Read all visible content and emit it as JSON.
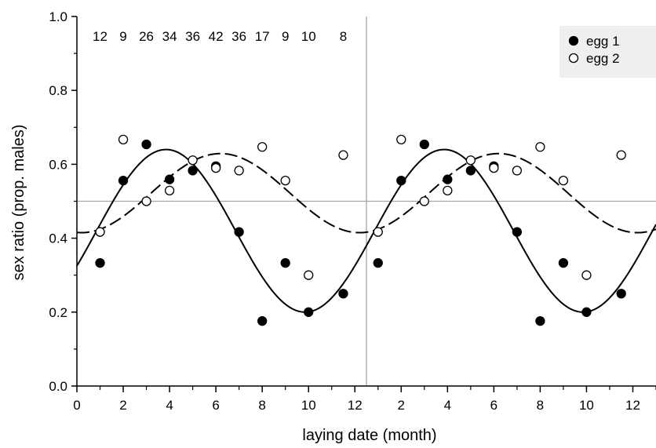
{
  "chart_data": {
    "type": "scatter",
    "title": "",
    "xlabel": "laying date (month)",
    "ylabel": "sex ratio (prop. males)",
    "xlim": [
      0,
      25
    ],
    "ylim": [
      0,
      1
    ],
    "x_tick_labels": [
      "0",
      "2",
      "4",
      "6",
      "8",
      "10",
      "12",
      "2",
      "4",
      "6",
      "8",
      "10",
      "12"
    ],
    "y_tick_labels": [
      "0.0",
      "0.2",
      "0.4",
      "0.6",
      "0.8",
      "1.0"
    ],
    "reference_lines": {
      "horizontal_y": 0.5,
      "vertical_x": 12.5
    },
    "sample_sizes": {
      "x": [
        1,
        2,
        3,
        4,
        5,
        6,
        7,
        8,
        9,
        10,
        11.5
      ],
      "labels": [
        "12",
        "9",
        "26",
        "34",
        "36",
        "42",
        "36",
        "17",
        "9",
        "10",
        "8"
      ]
    },
    "legend": {
      "position": "top-right"
    },
    "series": [
      {
        "name": "egg 1",
        "marker": "filled-circle",
        "color": "#000000",
        "x": [
          1,
          2,
          3,
          4,
          5,
          6,
          7,
          8,
          9,
          10,
          11.5
        ],
        "y": [
          0.333,
          0.556,
          0.654,
          0.559,
          0.583,
          0.595,
          0.417,
          0.176,
          0.333,
          0.2,
          0.25
        ]
      },
      {
        "name": "egg 2",
        "marker": "open-circle",
        "color": "#000000",
        "x": [
          1,
          2,
          3,
          4,
          5,
          6,
          7,
          8,
          9,
          10,
          11.5
        ],
        "y": [
          0.417,
          0.667,
          0.5,
          0.529,
          0.611,
          0.59,
          0.583,
          0.647,
          0.556,
          0.3,
          0.625
        ]
      }
    ],
    "fitted_curves": [
      {
        "series": "egg 1",
        "style": "solid",
        "mean": 0.42,
        "amplitude": 0.22,
        "peak_month": 3.85,
        "period": 12
      },
      {
        "series": "egg 2",
        "style": "dashed",
        "mean": 0.522,
        "amplitude": 0.107,
        "peak_month": 6.2,
        "period": 12
      }
    ]
  }
}
